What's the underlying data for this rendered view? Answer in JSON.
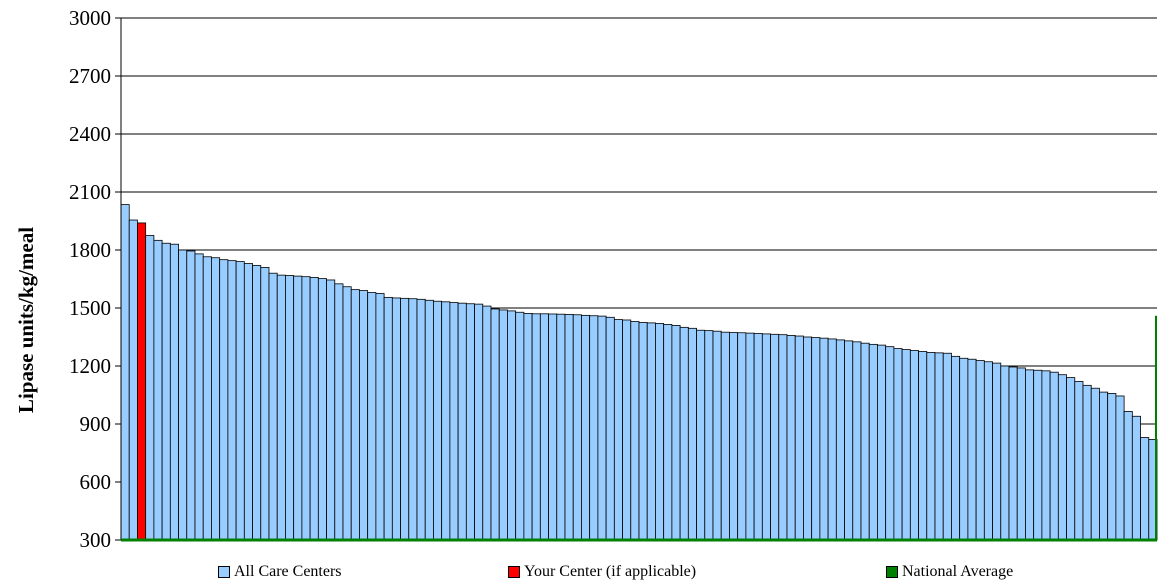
{
  "chart_data": {
    "type": "bar",
    "ylabel": "Lipase units/kg/meal",
    "ylim": [
      300,
      3000
    ],
    "yticks": [
      300,
      600,
      900,
      1200,
      1500,
      1800,
      2100,
      2400,
      2700,
      3000
    ],
    "grid": true,
    "legend_position": "bottom",
    "highlight_index": 2,
    "national_average": 1460,
    "colors": {
      "all": "#99ccff",
      "your_center": "#ff0000",
      "national_average": "#008000"
    },
    "series": [
      {
        "name": "All Care Centers"
      },
      {
        "name": "Your Center (if applicable)"
      },
      {
        "name": "National Average"
      }
    ],
    "values": [
      2035,
      1955,
      1940,
      1875,
      1850,
      1835,
      1830,
      1800,
      1795,
      1780,
      1765,
      1760,
      1750,
      1745,
      1740,
      1730,
      1720,
      1710,
      1680,
      1670,
      1668,
      1665,
      1662,
      1658,
      1652,
      1645,
      1625,
      1610,
      1595,
      1590,
      1580,
      1575,
      1555,
      1552,
      1550,
      1548,
      1545,
      1540,
      1535,
      1532,
      1528,
      1525,
      1522,
      1520,
      1510,
      1495,
      1490,
      1485,
      1478,
      1472,
      1470,
      1470,
      1469,
      1468,
      1467,
      1465,
      1462,
      1460,
      1458,
      1452,
      1440,
      1438,
      1430,
      1425,
      1423,
      1420,
      1415,
      1410,
      1400,
      1395,
      1385,
      1383,
      1380,
      1375,
      1373,
      1372,
      1370,
      1368,
      1366,
      1364,
      1362,
      1358,
      1355,
      1350,
      1347,
      1344,
      1340,
      1335,
      1330,
      1325,
      1318,
      1312,
      1308,
      1300,
      1290,
      1285,
      1280,
      1275,
      1270,
      1268,
      1266,
      1250,
      1240,
      1235,
      1228,
      1222,
      1215,
      1200,
      1195,
      1190,
      1180,
      1178,
      1175,
      1168,
      1155,
      1140,
      1120,
      1100,
      1085,
      1065,
      1058,
      1045,
      965,
      940,
      830,
      820
    ]
  }
}
